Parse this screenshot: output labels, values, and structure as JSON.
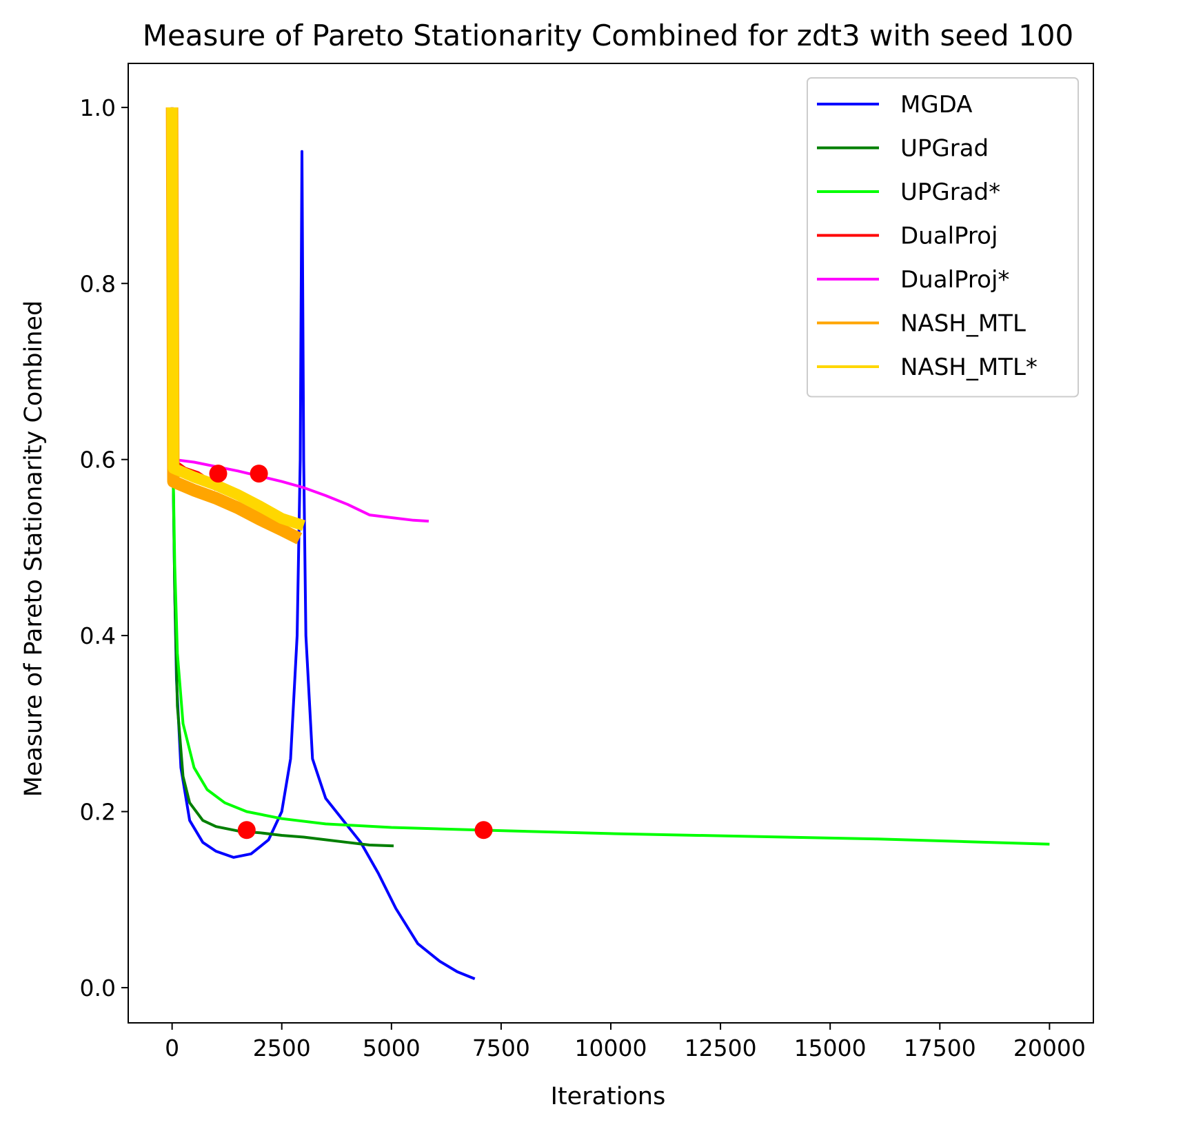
{
  "chart_data": {
    "type": "line",
    "title": "Measure of Pareto Stationarity Combined for zdt3 with seed 100",
    "xlabel": "Iterations",
    "ylabel": "Measure of Pareto Stationarity Combined",
    "xlim": [
      -1000,
      21000
    ],
    "ylim": [
      -0.04,
      1.05
    ],
    "x_ticks": [
      0,
      2500,
      5000,
      7500,
      10000,
      12500,
      15000,
      17500,
      20000
    ],
    "y_ticks": [
      0.0,
      0.2,
      0.4,
      0.6,
      0.8,
      1.0
    ],
    "x_tick_labels": [
      "0",
      "2500",
      "5000",
      "7500",
      "10000",
      "12500",
      "15000",
      "17500",
      "20000"
    ],
    "y_tick_labels": [
      "0.0",
      "0.2",
      "0.4",
      "0.6",
      "0.8",
      "1.0"
    ],
    "grid": false,
    "legend_position": "top-right",
    "series": [
      {
        "name": "MGDA",
        "color": "#0000ff",
        "points": [
          [
            0,
            1.0
          ],
          [
            20,
            0.6
          ],
          [
            60,
            0.45
          ],
          [
            100,
            0.35
          ],
          [
            200,
            0.25
          ],
          [
            400,
            0.19
          ],
          [
            700,
            0.165
          ],
          [
            1000,
            0.155
          ],
          [
            1400,
            0.148
          ],
          [
            1800,
            0.152
          ],
          [
            2200,
            0.168
          ],
          [
            2500,
            0.2
          ],
          [
            2700,
            0.26
          ],
          [
            2850,
            0.4
          ],
          [
            2920,
            0.6
          ],
          [
            2960,
            0.95
          ],
          [
            3000,
            0.6
          ],
          [
            3050,
            0.4
          ],
          [
            3200,
            0.26
          ],
          [
            3500,
            0.215
          ],
          [
            3900,
            0.19
          ],
          [
            4300,
            0.165
          ],
          [
            4700,
            0.13
          ],
          [
            5100,
            0.09
          ],
          [
            5600,
            0.05
          ],
          [
            6100,
            0.03
          ],
          [
            6500,
            0.018
          ],
          [
            6900,
            0.01
          ]
        ]
      },
      {
        "name": "UPGrad",
        "color": "#007f00",
        "points": [
          [
            0,
            1.0
          ],
          [
            20,
            0.6
          ],
          [
            60,
            0.45
          ],
          [
            120,
            0.32
          ],
          [
            250,
            0.24
          ],
          [
            400,
            0.21
          ],
          [
            700,
            0.19
          ],
          [
            1000,
            0.183
          ],
          [
            1500,
            0.178
          ],
          [
            2000,
            0.176
          ],
          [
            2500,
            0.173
          ],
          [
            3000,
            0.171
          ],
          [
            3500,
            0.168
          ],
          [
            4000,
            0.165
          ],
          [
            4500,
            0.162
          ],
          [
            5050,
            0.161
          ]
        ]
      },
      {
        "name": "UPGrad*",
        "color": "#00ff00",
        "points": [
          [
            0,
            1.0
          ],
          [
            20,
            0.6
          ],
          [
            60,
            0.48
          ],
          [
            120,
            0.38
          ],
          [
            250,
            0.3
          ],
          [
            500,
            0.25
          ],
          [
            800,
            0.225
          ],
          [
            1200,
            0.21
          ],
          [
            1700,
            0.2
          ],
          [
            2500,
            0.192
          ],
          [
            3500,
            0.186
          ],
          [
            5000,
            0.182
          ],
          [
            7000,
            0.179
          ],
          [
            10000,
            0.175
          ],
          [
            13000,
            0.172
          ],
          [
            16000,
            0.169
          ],
          [
            18000,
            0.166
          ],
          [
            20000,
            0.163
          ]
        ]
      },
      {
        "name": "DualProj",
        "color": "#ff0000",
        "points": [
          [
            0,
            1.0
          ],
          [
            30,
            0.6
          ],
          [
            300,
            0.59
          ],
          [
            600,
            0.585
          ],
          [
            900,
            0.575
          ],
          [
            1000,
            0.565
          ]
        ]
      },
      {
        "name": "DualProj*",
        "color": "#ff00ff",
        "points": [
          [
            0,
            1.0
          ],
          [
            30,
            0.6
          ],
          [
            500,
            0.597
          ],
          [
            1000,
            0.592
          ],
          [
            1500,
            0.587
          ],
          [
            2000,
            0.581
          ],
          [
            2500,
            0.575
          ],
          [
            3000,
            0.568
          ],
          [
            3500,
            0.559
          ],
          [
            4000,
            0.549
          ],
          [
            4500,
            0.537
          ],
          [
            5000,
            0.534
          ],
          [
            5500,
            0.531
          ],
          [
            5850,
            0.53
          ]
        ]
      },
      {
        "name": "NASH_MTL",
        "color": "#ffa500",
        "points": [
          [
            0,
            1.0
          ],
          [
            30,
            0.575
          ],
          [
            500,
            0.565
          ],
          [
            1000,
            0.556
          ],
          [
            1500,
            0.545
          ],
          [
            2000,
            0.532
          ],
          [
            2500,
            0.52
          ],
          [
            2900,
            0.51
          ]
        ]
      },
      {
        "name": "NASH_MTL*",
        "color": "#ffd700",
        "points": [
          [
            0,
            1.0
          ],
          [
            30,
            0.59
          ],
          [
            500,
            0.58
          ],
          [
            1000,
            0.571
          ],
          [
            1500,
            0.56
          ],
          [
            2000,
            0.547
          ],
          [
            2500,
            0.533
          ],
          [
            3000,
            0.525
          ]
        ]
      }
    ],
    "markers": [
      {
        "x": 1050,
        "y": 0.584
      },
      {
        "x": 1980,
        "y": 0.584
      },
      {
        "x": 1700,
        "y": 0.179
      },
      {
        "x": 7100,
        "y": 0.179
      }
    ]
  }
}
